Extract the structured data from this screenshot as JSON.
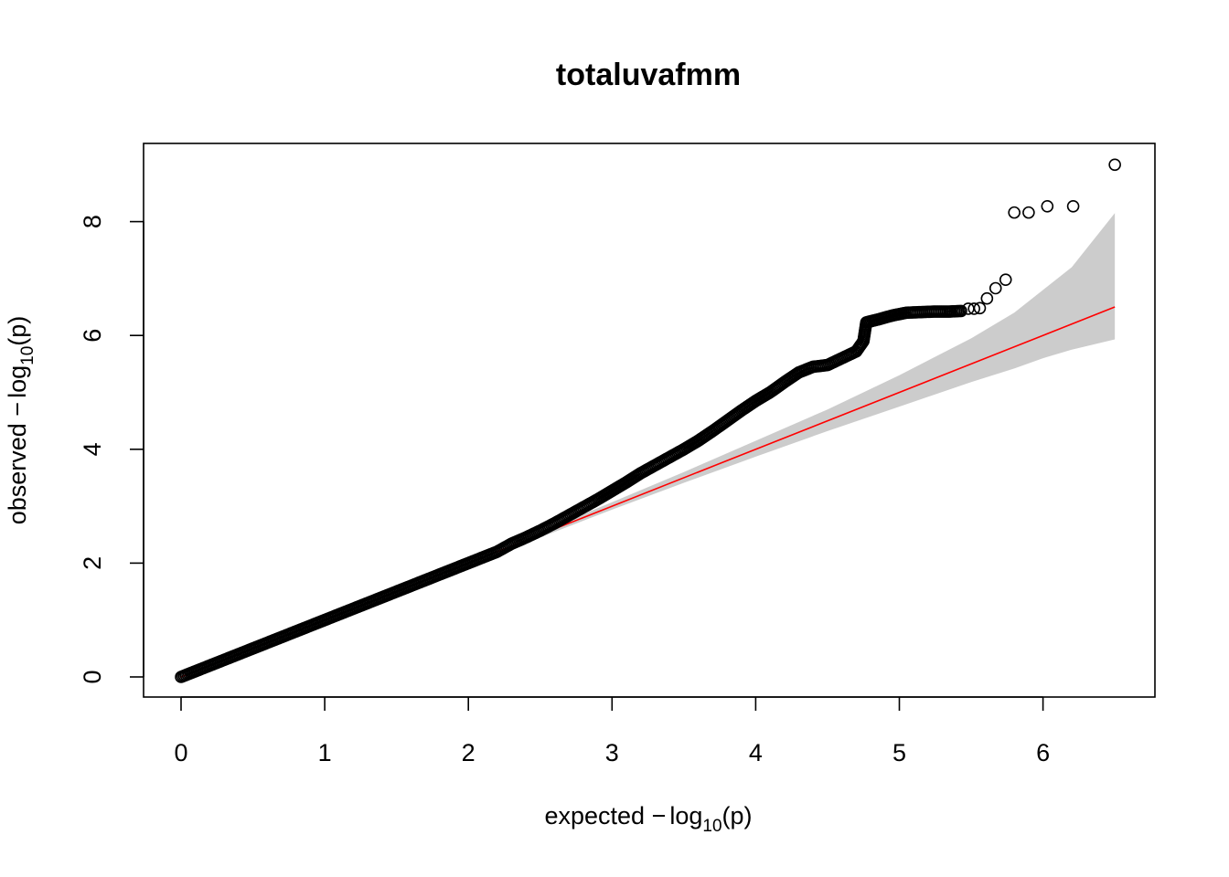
{
  "chart_data": {
    "type": "scatter",
    "title": "totaluvafmm",
    "xlabel": {
      "prefix": "expected ",
      "minus": "−",
      "log": "log",
      "sub": "10",
      "arg": "(p)"
    },
    "ylabel": {
      "prefix": "observed ",
      "minus": "−",
      "log": "log",
      "sub": "10",
      "arg": "(p)"
    },
    "xlim": [
      0,
      6.5
    ],
    "ylim": [
      0,
      9.0
    ],
    "xticks": [
      "0",
      "1",
      "2",
      "3",
      "4",
      "5",
      "6"
    ],
    "yticks": [
      "0",
      "2",
      "4",
      "6",
      "8"
    ],
    "grid": false,
    "legend": "none",
    "colors": {
      "points": "#000000",
      "reference_line": "#ff0000",
      "confidence_band": "#cccccc"
    },
    "reference_line": {
      "from": [
        0,
        0
      ],
      "to": [
        6.5,
        6.5
      ]
    },
    "confidence_band": {
      "x": [
        2.5,
        3.0,
        3.5,
        4.0,
        4.5,
        5.0,
        5.5,
        5.8,
        6.0,
        6.2,
        6.5
      ],
      "upper": [
        2.55,
        3.07,
        3.6,
        4.15,
        4.7,
        5.3,
        5.95,
        6.4,
        6.8,
        7.2,
        8.15
      ],
      "lower": [
        2.45,
        2.94,
        3.41,
        3.87,
        4.32,
        4.75,
        5.18,
        5.42,
        5.6,
        5.75,
        5.93
      ]
    },
    "series": [
      {
        "points": [
          [
            0.0,
            0.0
          ],
          [
            0.1,
            0.1
          ],
          [
            0.2,
            0.2
          ],
          [
            0.3,
            0.3
          ],
          [
            0.4,
            0.4
          ],
          [
            0.5,
            0.5
          ],
          [
            0.6,
            0.6
          ],
          [
            0.7,
            0.7
          ],
          [
            0.8,
            0.8
          ],
          [
            0.9,
            0.9
          ],
          [
            1.0,
            1.0
          ],
          [
            1.1,
            1.1
          ],
          [
            1.2,
            1.2
          ],
          [
            1.3,
            1.3
          ],
          [
            1.4,
            1.4
          ],
          [
            1.5,
            1.5
          ],
          [
            1.6,
            1.6
          ],
          [
            1.7,
            1.7
          ],
          [
            1.8,
            1.8
          ],
          [
            1.9,
            1.9
          ],
          [
            2.0,
            2.0
          ],
          [
            2.1,
            2.1
          ],
          [
            2.2,
            2.2
          ],
          [
            2.3,
            2.34
          ],
          [
            2.4,
            2.45
          ],
          [
            2.5,
            2.57
          ],
          [
            2.6,
            2.7
          ],
          [
            2.7,
            2.84
          ],
          [
            2.8,
            2.98
          ],
          [
            2.9,
            3.12
          ],
          [
            3.0,
            3.27
          ],
          [
            3.1,
            3.42
          ],
          [
            3.2,
            3.58
          ],
          [
            3.3,
            3.72
          ],
          [
            3.4,
            3.86
          ],
          [
            3.5,
            4.0
          ],
          [
            3.6,
            4.15
          ],
          [
            3.7,
            4.32
          ],
          [
            3.8,
            4.5
          ],
          [
            3.9,
            4.68
          ],
          [
            4.0,
            4.85
          ],
          [
            4.1,
            5.0
          ],
          [
            4.2,
            5.18
          ],
          [
            4.3,
            5.35
          ],
          [
            4.4,
            5.45
          ],
          [
            4.5,
            5.48
          ],
          [
            4.6,
            5.6
          ],
          [
            4.7,
            5.72
          ],
          [
            4.75,
            5.9
          ],
          [
            4.77,
            6.23
          ],
          [
            4.85,
            6.28
          ],
          [
            4.95,
            6.35
          ],
          [
            5.05,
            6.4
          ],
          [
            5.15,
            6.41
          ],
          [
            5.25,
            6.42
          ],
          [
            5.35,
            6.42
          ],
          [
            5.43,
            6.43
          ],
          [
            5.48,
            6.47
          ],
          [
            5.52,
            6.47
          ],
          [
            5.56,
            6.48
          ],
          [
            5.61,
            6.65
          ],
          [
            5.67,
            6.83
          ],
          [
            5.74,
            6.98
          ],
          [
            5.8,
            8.16
          ],
          [
            5.9,
            8.16
          ],
          [
            6.03,
            8.27
          ],
          [
            6.21,
            8.27
          ],
          [
            6.5,
            9.0
          ]
        ]
      }
    ]
  }
}
